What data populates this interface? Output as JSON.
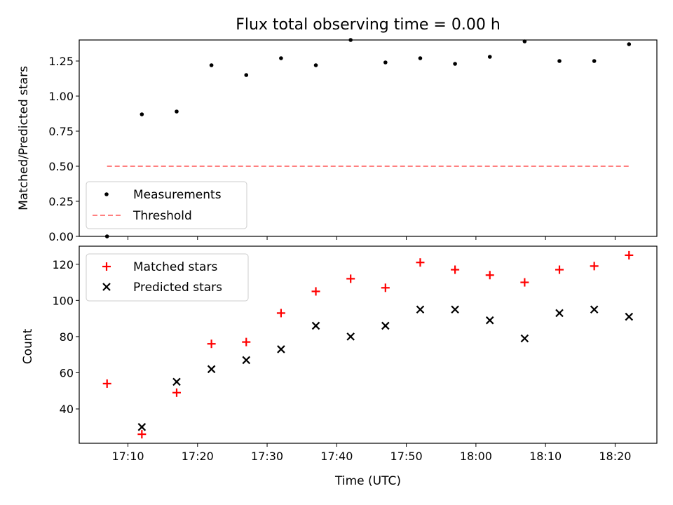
{
  "chart_data": [
    {
      "type": "scatter",
      "panel": "top",
      "title": "Flux total observing time = 0.00 h",
      "xlabel": "",
      "ylabel": "Matched/Predicted stars",
      "ylim": [
        0,
        1.4
      ],
      "yticks": [
        0.0,
        0.25,
        0.5,
        0.75,
        1.0,
        1.25
      ],
      "ytick_labels": [
        "0.00",
        "0.25",
        "0.50",
        "0.75",
        "1.00",
        "1.25"
      ],
      "legend_position": "lower-left",
      "series": [
        {
          "name": "Measurements",
          "marker": "dot",
          "color": "#000000",
          "x": [
            7,
            12,
            17,
            22,
            27,
            32,
            37,
            42,
            47,
            52,
            57,
            62,
            67,
            72,
            77,
            82
          ],
          "values": [
            0.0,
            0.87,
            0.89,
            1.22,
            1.15,
            1.27,
            1.22,
            1.4,
            1.24,
            1.27,
            1.23,
            1.28,
            1.39,
            1.25,
            1.25,
            1.37
          ]
        },
        {
          "name": "Threshold",
          "marker": "dashed-line",
          "color": "#ff8080",
          "x": [
            7,
            82
          ],
          "values": [
            0.5,
            0.5
          ]
        }
      ]
    },
    {
      "type": "scatter",
      "panel": "bottom",
      "title": "",
      "xlabel": "Time (UTC)",
      "ylabel": "Count",
      "ylim": [
        21,
        130
      ],
      "yticks": [
        40,
        60,
        80,
        100,
        120
      ],
      "ytick_labels": [
        "40",
        "60",
        "80",
        "100",
        "120"
      ],
      "legend_position": "top-left",
      "series": [
        {
          "name": "Matched stars",
          "marker": "plus",
          "color": "#ff0000",
          "x": [
            7,
            12,
            17,
            22,
            27,
            32,
            37,
            42,
            47,
            52,
            57,
            62,
            67,
            72,
            77,
            82
          ],
          "values": [
            54,
            26,
            49,
            76,
            77,
            93,
            105,
            112,
            107,
            121,
            117,
            114,
            110,
            117,
            119,
            125
          ]
        },
        {
          "name": "Predicted stars",
          "marker": "x",
          "color": "#000000",
          "x": [
            12,
            17,
            22,
            27,
            32,
            37,
            42,
            47,
            52,
            57,
            62,
            67,
            72,
            77,
            82
          ],
          "values": [
            30,
            55,
            62,
            67,
            73,
            86,
            80,
            86,
            95,
            95,
            89,
            79,
            93,
            95,
            91
          ]
        }
      ]
    }
  ],
  "x_axis": {
    "unit_note": "minutes after 17:00 UTC",
    "xlim": [
      3,
      86
    ],
    "ticks": [
      10,
      20,
      30,
      40,
      50,
      60,
      70,
      80
    ],
    "tick_labels": [
      "17:10",
      "17:20",
      "17:30",
      "17:40",
      "17:50",
      "18:00",
      "18:10",
      "18:20"
    ]
  }
}
